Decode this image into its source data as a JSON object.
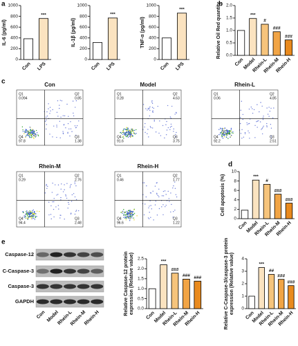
{
  "panel_labels": [
    "a",
    "b",
    "c",
    "d",
    "e"
  ],
  "chart_data": [
    {
      "type": "bar",
      "ylabel": [
        "IL-6 (pg/ml)"
      ],
      "categories": [
        "Con",
        "LPS"
      ],
      "values": [
        385,
        760
      ],
      "colors": [
        "#ffffff",
        "#fbe3c0"
      ],
      "annotations": [
        null,
        "***"
      ],
      "ylim": [
        0,
        1000
      ],
      "yticks": [
        0,
        200,
        400,
        600,
        800,
        1000
      ]
    },
    {
      "type": "bar",
      "ylabel": [
        "IL-1β (pg/ml)"
      ],
      "categories": [
        "Con",
        "LPS"
      ],
      "values": [
        315,
        770
      ],
      "colors": [
        "#ffffff",
        "#fbe3c0"
      ],
      "annotations": [
        null,
        "***"
      ],
      "ylim": [
        0,
        1000
      ],
      "yticks": [
        0,
        200,
        400,
        600,
        800,
        1000
      ]
    },
    {
      "type": "bar",
      "ylabel": [
        "TNF-α (pg/ml)"
      ],
      "categories": [
        "Con",
        "LPS"
      ],
      "values": [
        400,
        860
      ],
      "colors": [
        "#ffffff",
        "#fbe3c0"
      ],
      "annotations": [
        null,
        "***"
      ],
      "ylim": [
        0,
        1000
      ],
      "yticks": [
        0,
        200,
        400,
        600,
        800,
        1000
      ]
    },
    {
      "type": "bar",
      "ylabel": [
        "Relative Oil Red quantity"
      ],
      "categories": [
        "Con",
        "Model",
        "Rhein-L",
        "Rhein-M",
        "Rhein-H"
      ],
      "values": [
        1.0,
        1.48,
        1.25,
        0.95,
        0.62
      ],
      "colors": [
        "#ffffff",
        "#fbe3c0",
        "#f6c47c",
        "#f1a445",
        "#e98a1e"
      ],
      "annotations": [
        null,
        "***",
        "#",
        "###",
        "###"
      ],
      "ylim": [
        0,
        2
      ],
      "yticks": [
        {
          "value": 0,
          "label": "0.0"
        },
        {
          "value": 0.5,
          "label": "0.5"
        },
        {
          "value": 1,
          "label": "1.0"
        },
        {
          "value": 1.5,
          "label": "1.5"
        },
        {
          "value": 2,
          "label": "2.0"
        }
      ]
    },
    {
      "type": "bar",
      "ylabel": [
        "Cell apoptosis (%)"
      ],
      "categories": [
        "Con",
        "Model",
        "Rhein-L",
        "Rhein-M",
        "Rhein-H"
      ],
      "values": [
        1.8,
        8.2,
        7.3,
        5.2,
        3.3
      ],
      "colors": [
        "#ffffff",
        "#fbe3c0",
        "#f6c47c",
        "#f1a445",
        "#e98a1e"
      ],
      "annotations": [
        null,
        "***",
        "#",
        "###",
        "###"
      ],
      "ylim": [
        0,
        10
      ],
      "yticks": [
        0,
        2,
        4,
        6,
        8,
        10
      ]
    },
    {
      "type": "bar",
      "ylabel": [
        "Relative Caspase-12 protein",
        "expression (Relative value)"
      ],
      "categories": [
        "Con",
        "Model",
        "Rhein-L",
        "Rhein-M",
        "Rhein-H"
      ],
      "values": [
        1.0,
        2.2,
        1.78,
        1.48,
        1.38
      ],
      "colors": [
        "#ffffff",
        "#fbe3c0",
        "#f6c47c",
        "#f1a445",
        "#e98a1e"
      ],
      "annotations": [
        null,
        "***",
        "###",
        "###",
        "###"
      ],
      "ylim": [
        0,
        2.5
      ],
      "yticks": [
        {
          "value": 0,
          "label": "0.0"
        },
        {
          "value": 0.5,
          "label": "0.5"
        },
        {
          "value": 1,
          "label": "1.0"
        },
        {
          "value": 1.5,
          "label": "1.5"
        },
        {
          "value": 2,
          "label": "2.0"
        },
        {
          "value": 2.5,
          "label": "2.5"
        }
      ]
    },
    {
      "type": "bar",
      "ylabel": [
        "Relative C-Caspase-3/caspase-3 protein",
        "expression (Relative value)"
      ],
      "categories": [
        "Con",
        "Model",
        "Rhein-L",
        "Rhein-M",
        "Rhein-H"
      ],
      "values": [
        1.0,
        3.3,
        2.75,
        2.35,
        1.85
      ],
      "colors": [
        "#ffffff",
        "#fbe3c0",
        "#f6c47c",
        "#f1a445",
        "#e98a1e"
      ],
      "annotations": [
        null,
        "***",
        "##",
        "###",
        "###"
      ],
      "ylim": [
        0,
        4
      ],
      "yticks": [
        0,
        1,
        2,
        3,
        4
      ]
    }
  ],
  "flow_cytometry": {
    "quadrant_names": [
      "Q1",
      "Q2",
      "Q4",
      "Q3"
    ],
    "panels": [
      {
        "title": "Con",
        "quadrants": [
          0.094,
          0.85,
          97.8,
          1.38
        ]
      },
      {
        "title": "Model",
        "quadrants": [
          0.28,
          4.63,
          91.6,
          3.75
        ]
      },
      {
        "title": "Rhein-L",
        "quadrants": [
          0.06,
          4.85,
          92.2,
          2.51
        ]
      },
      {
        "title": "Rhein-M",
        "quadrants": [
          0.29,
          2.76,
          94.4,
          2.48
        ]
      },
      {
        "title": "Rhein-H",
        "quadrants": [
          0.46,
          1.77,
          96.6,
          1.22
        ]
      }
    ]
  },
  "western_blot": {
    "proteins": [
      "Caspase-12",
      "C-Caspase-3",
      "Caspase-3",
      "GAPDH"
    ],
    "lanes": [
      "Con",
      "Model",
      "Rhein-L",
      "Rhein-M",
      "Rhein-H"
    ]
  }
}
